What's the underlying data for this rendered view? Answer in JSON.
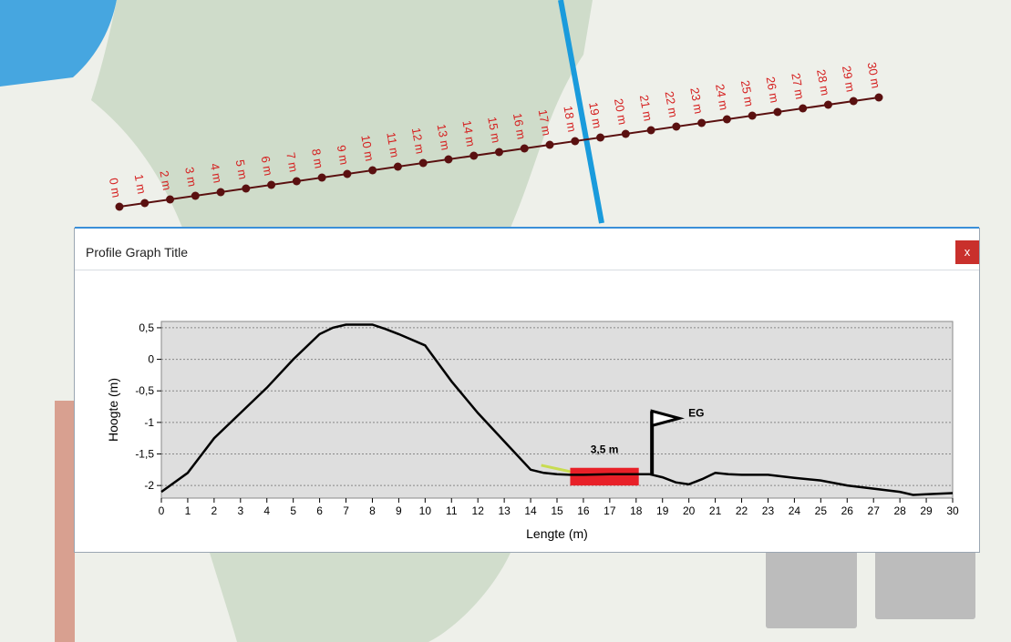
{
  "panel": {
    "title": "Profile Graph Title",
    "close_label": "x"
  },
  "map": {
    "colors": {
      "water": "#46a6e0",
      "land": "#eef0ea",
      "park": "#c9d8c4",
      "line": "#5a1010",
      "labels": "#d52020",
      "blue_line": "#1a9bdc"
    },
    "distance_labels": [
      "0 m",
      "1 m",
      "2 m",
      "3 m",
      "4 m",
      "5 m",
      "6 m",
      "7 m",
      "8 m",
      "9 m",
      "10 m",
      "11 m",
      "12 m",
      "13 m",
      "14 m",
      "15 m",
      "16 m",
      "17 m",
      "18 m",
      "19 m",
      "20 m",
      "21 m",
      "22 m",
      "23 m",
      "24 m",
      "25 m",
      "26 m",
      "27 m",
      "28 m",
      "29 m",
      "30 m"
    ]
  },
  "chart_data": {
    "type": "line",
    "xlabel": "Lengte (m)",
    "ylabel": "Hoogte (m)",
    "xlim": [
      0,
      30
    ],
    "ylim": [
      -2.2,
      0.6
    ],
    "x_ticks": [
      0,
      1,
      2,
      3,
      4,
      5,
      6,
      7,
      8,
      9,
      10,
      11,
      12,
      13,
      14,
      15,
      16,
      17,
      18,
      19,
      20,
      21,
      22,
      23,
      24,
      25,
      26,
      27,
      28,
      29,
      30
    ],
    "y_ticks": [
      0.5,
      0,
      -0.5,
      -1,
      -1.5,
      -2
    ],
    "y_tick_labels": [
      "0,5",
      "0",
      "-0,5",
      "-1",
      "-1,5",
      "-2"
    ],
    "grid": "horizontal",
    "series": [
      {
        "x": [
          0,
          1,
          2,
          3,
          4,
          5,
          6,
          6.5,
          7,
          8,
          8.5,
          9,
          10,
          11,
          12,
          13,
          14,
          14.5,
          15,
          15.5,
          16,
          17,
          18,
          18.5,
          19,
          19.5,
          20,
          20.5,
          21,
          21.5,
          22,
          23,
          24,
          25,
          26,
          27,
          28,
          28.5,
          29,
          30
        ],
        "y": [
          -2.1,
          -1.8,
          -1.25,
          -0.85,
          -0.45,
          0,
          0.4,
          0.5,
          0.55,
          0.55,
          0.48,
          0.4,
          0.22,
          -0.35,
          -0.85,
          -1.3,
          -1.75,
          -1.8,
          -1.82,
          -1.83,
          -1.83,
          -1.82,
          -1.82,
          -1.82,
          -1.87,
          -1.95,
          -1.98,
          -1.9,
          -1.8,
          -1.82,
          -1.83,
          -1.83,
          -1.88,
          -1.92,
          -2.0,
          -2.05,
          -2.1,
          -2.15,
          -2.14,
          -2.12
        ],
        "color": "#000000"
      }
    ],
    "annotations": [
      {
        "type": "bar",
        "x_start": 15.5,
        "x_end": 18.1,
        "y_top": -1.72,
        "y_bottom": -2.0,
        "label": "3,5 m",
        "color": "#e82028"
      },
      {
        "type": "flag",
        "x": 18.6,
        "y_base": -1.82,
        "y_top": -0.82,
        "label": "EG",
        "color": "#000000"
      },
      {
        "type": "segment",
        "x_start": 14.4,
        "x_end": 15.5,
        "y_start": -1.68,
        "y_end": -1.78,
        "color": "#c8dc50"
      }
    ]
  }
}
